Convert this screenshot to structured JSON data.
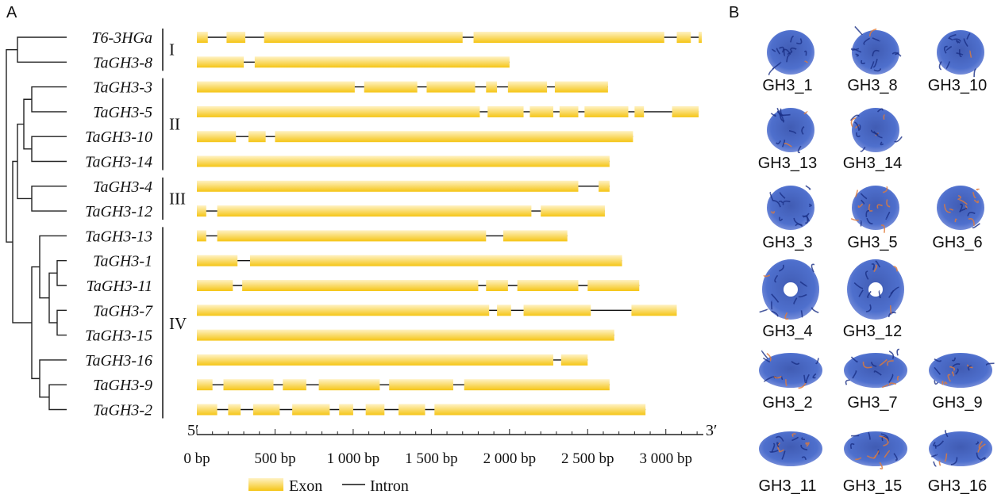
{
  "panels": {
    "a": "A",
    "b": "B"
  },
  "genes": [
    {
      "name": "T6-3HGa",
      "group": "I",
      "exons": [
        [
          0,
          70
        ],
        [
          190,
          310
        ],
        [
          430,
          1700
        ],
        [
          1770,
          2990
        ],
        [
          3070,
          3160
        ],
        [
          3210,
          3230
        ]
      ]
    },
    {
      "name": "TaGH3-8",
      "group": "I",
      "exons": [
        [
          0,
          300
        ],
        [
          370,
          2000
        ]
      ]
    },
    {
      "name": "TaGH3-3",
      "group": "II",
      "exons": [
        [
          0,
          1010
        ],
        [
          1070,
          1410
        ],
        [
          1470,
          1780
        ],
        [
          1850,
          1920
        ],
        [
          1990,
          2240
        ],
        [
          2290,
          2630
        ]
      ]
    },
    {
      "name": "TaGH3-5",
      "group": "II",
      "exons": [
        [
          0,
          1810
        ],
        [
          1860,
          2090
        ],
        [
          2130,
          2280
        ],
        [
          2320,
          2440
        ],
        [
          2480,
          2760
        ],
        [
          2800,
          2860
        ],
        [
          3040,
          3210
        ]
      ]
    },
    {
      "name": "TaGH3-10",
      "group": "II",
      "exons": [
        [
          0,
          250
        ],
        [
          330,
          440
        ],
        [
          500,
          2790
        ]
      ]
    },
    {
      "name": "TaGH3-14",
      "group": "II",
      "exons": [
        [
          0,
          2640
        ]
      ]
    },
    {
      "name": "TaGH3-4",
      "group": "III",
      "exons": [
        [
          0,
          2440
        ],
        [
          2570,
          2640
        ]
      ]
    },
    {
      "name": "TaGH3-12",
      "group": "III",
      "exons": [
        [
          0,
          60
        ],
        [
          130,
          2140
        ],
        [
          2200,
          2610
        ]
      ]
    },
    {
      "name": "TaGH3-13",
      "group": "IV",
      "exons": [
        [
          0,
          60
        ],
        [
          130,
          1850
        ],
        [
          1960,
          2370
        ]
      ]
    },
    {
      "name": "TaGH3-1",
      "group": "IV",
      "exons": [
        [
          0,
          260
        ],
        [
          340,
          2720
        ]
      ]
    },
    {
      "name": "TaGH3-11",
      "group": "IV",
      "exons": [
        [
          0,
          230
        ],
        [
          290,
          1800
        ],
        [
          1850,
          1990
        ],
        [
          2050,
          2440
        ],
        [
          2500,
          2830
        ]
      ]
    },
    {
      "name": "TaGH3-7",
      "group": "IV",
      "exons": [
        [
          0,
          1870
        ],
        [
          1920,
          2010
        ],
        [
          2090,
          2520
        ],
        [
          2780,
          3070
        ]
      ]
    },
    {
      "name": "TaGH3-15",
      "group": "IV",
      "exons": [
        [
          0,
          2670
        ]
      ]
    },
    {
      "name": "TaGH3-16",
      "group": "IV",
      "exons": [
        [
          0,
          2280
        ],
        [
          2330,
          2500
        ]
      ]
    },
    {
      "name": "TaGH3-9",
      "group": "IV",
      "exons": [
        [
          0,
          100
        ],
        [
          170,
          490
        ],
        [
          550,
          700
        ],
        [
          780,
          1170
        ],
        [
          1230,
          1640
        ],
        [
          1710,
          2640
        ]
      ]
    },
    {
      "name": "TaGH3-2",
      "group": "IV",
      "exons": [
        [
          0,
          130
        ],
        [
          200,
          280
        ],
        [
          360,
          530
        ],
        [
          610,
          850
        ],
        [
          910,
          1000
        ],
        [
          1080,
          1200
        ],
        [
          1290,
          1460
        ],
        [
          1520,
          2870
        ]
      ]
    }
  ],
  "groups": [
    {
      "label": "I",
      "from": 0,
      "to": 1
    },
    {
      "label": "II",
      "from": 2,
      "to": 5
    },
    {
      "label": "III",
      "from": 6,
      "to": 7
    },
    {
      "label": "IV",
      "from": 8,
      "to": 15
    }
  ],
  "axis": {
    "start_label": "5′",
    "end_label": "3′",
    "max_bp": 3240,
    "ticks": [
      {
        "value": 0,
        "label": "0 bp"
      },
      {
        "value": 500,
        "label": "500 bp"
      },
      {
        "value": 1000,
        "label": "1 000 bp"
      },
      {
        "value": 1500,
        "label": "1 500 bp"
      },
      {
        "value": 2000,
        "label": "2 000 bp"
      },
      {
        "value": 2500,
        "label": "2 500 bp"
      },
      {
        "value": 3000,
        "label": "3 000 bp"
      }
    ]
  },
  "legend": {
    "exon": "Exon",
    "intron": "Intron"
  },
  "colors": {
    "exon_light": "#fff2c4",
    "exon_dark": "#f5c516",
    "intron": "#111111",
    "protein_blue": "#2a4fb8",
    "protein_orange": "#e07a3a"
  },
  "structures": [
    [
      "GH3_1",
      "GH3_8",
      "GH3_10"
    ],
    [
      "GH3_13",
      "GH3_14"
    ],
    [
      "GH3_3",
      "GH3_5",
      "GH3_6"
    ],
    [
      "GH3_4",
      "GH3_12"
    ],
    [
      "GH3_2",
      "GH3_7",
      "GH3_9"
    ],
    [
      "GH3_11",
      "GH3_15",
      "GH3_16"
    ]
  ]
}
